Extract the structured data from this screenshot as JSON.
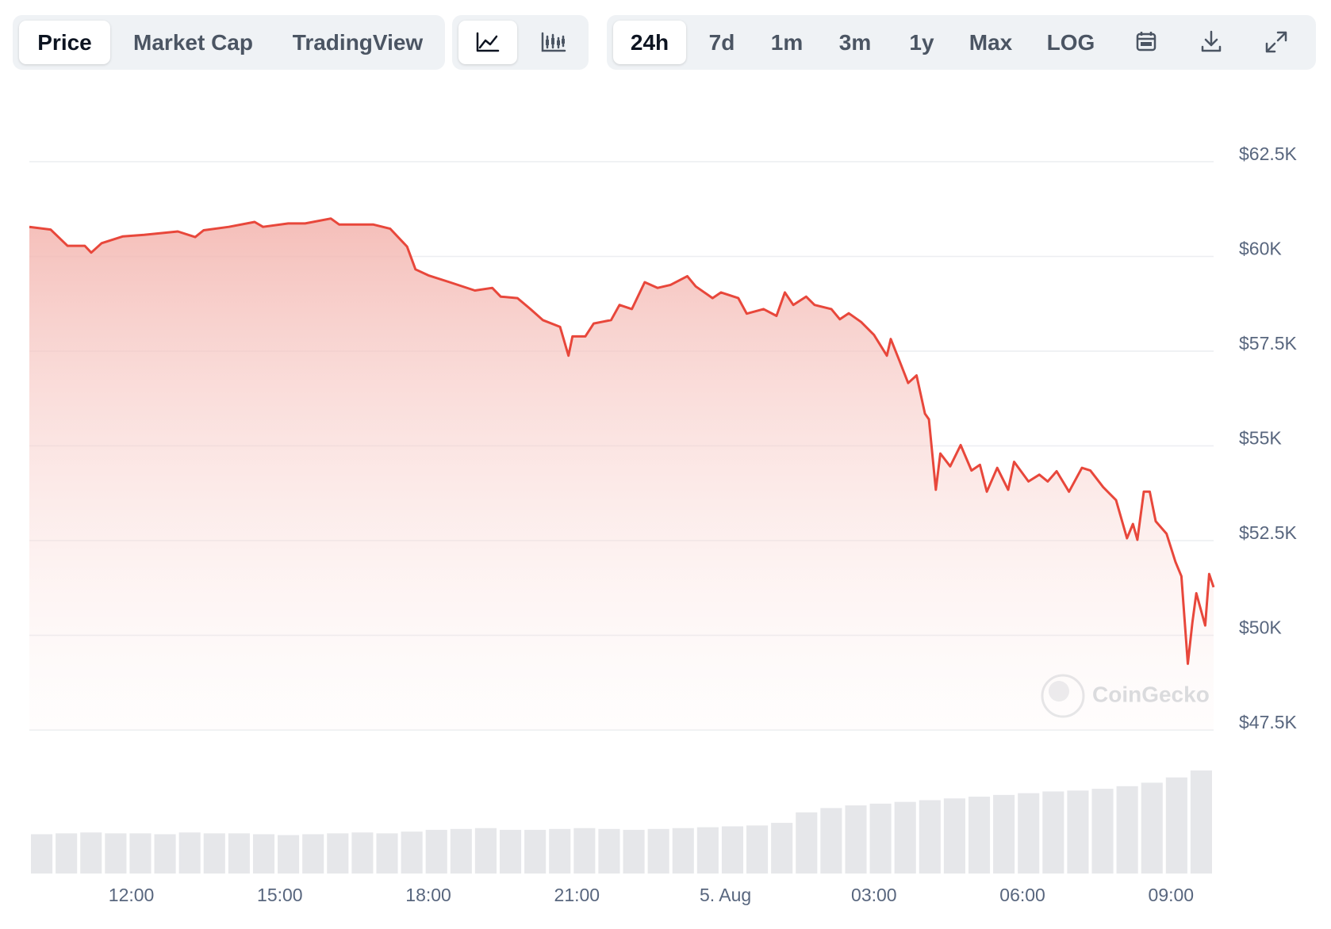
{
  "toolbar": {
    "tabs": [
      "Price",
      "Market Cap",
      "TradingView"
    ],
    "ranges": [
      "24h",
      "7d",
      "1m",
      "3m",
      "1y",
      "Max",
      "LOG"
    ]
  },
  "watermark": "CoinGecko",
  "chart_data": {
    "type": "line",
    "x": [
      9.94,
      10.37,
      10.71,
      11.06,
      11.19,
      11.4,
      11.83,
      12.26,
      12.94,
      13.29,
      13.46,
      13.97,
      14.49,
      14.66,
      15.17,
      15.51,
      16.03,
      16.2,
      16.89,
      17.23,
      17.57,
      17.74,
      18.0,
      18.43,
      18.94,
      19.29,
      19.46,
      19.8,
      20.06,
      20.31,
      20.66,
      20.83,
      20.91,
      21.17,
      21.34,
      21.69,
      21.86,
      22.11,
      22.37,
      22.63,
      22.89,
      23.23,
      23.4,
      23.74,
      23.91,
      24.26,
      24.43,
      24.77,
      25.03,
      25.2,
      25.37,
      25.63,
      25.8,
      26.14,
      26.31,
      26.49,
      26.74,
      27.0,
      27.26,
      27.34,
      27.51,
      27.69,
      27.86,
      28.03,
      28.11,
      28.25,
      28.34,
      28.54,
      28.75,
      28.97,
      29.14,
      29.28,
      29.49,
      29.71,
      29.83,
      30.12,
      30.34,
      30.51,
      30.69,
      30.94,
      31.2,
      31.37,
      31.63,
      31.89,
      32.11,
      32.23,
      32.32,
      32.45,
      32.57,
      32.69,
      32.91,
      33.09,
      33.21,
      33.34,
      33.43,
      33.51,
      33.69,
      33.77,
      33.86
    ],
    "values": [
      60780,
      60710,
      60280,
      60280,
      60100,
      60350,
      60530,
      60570,
      60660,
      60510,
      60690,
      60780,
      60910,
      60780,
      60870,
      60870,
      61000,
      60840,
      60840,
      60730,
      60260,
      59660,
      59500,
      59320,
      59100,
      59170,
      58940,
      58900,
      58610,
      58320,
      58140,
      57380,
      57890,
      57890,
      58230,
      58320,
      58720,
      58610,
      59320,
      59170,
      59250,
      59480,
      59210,
      58900,
      59050,
      58900,
      58490,
      58610,
      58430,
      59050,
      58720,
      58940,
      58720,
      58610,
      58340,
      58500,
      58270,
      57930,
      57380,
      57820,
      57260,
      56660,
      56860,
      55850,
      55700,
      53840,
      54800,
      54460,
      55020,
      54350,
      54500,
      53790,
      54420,
      53840,
      54580,
      54060,
      54240,
      54060,
      54330,
      53790,
      54420,
      54350,
      53910,
      53570,
      52560,
      52940,
      52520,
      53790,
      53790,
      53010,
      52680,
      51940,
      51560,
      49250,
      50330,
      51110,
      50260,
      51620,
      51270
    ],
    "color": "#e8473b",
    "volume_values": [
      45,
      46,
      47,
      46,
      46,
      45,
      47,
      46,
      46,
      45,
      44,
      45,
      46,
      47,
      46,
      48,
      50,
      51,
      52,
      50,
      50,
      51,
      52,
      51,
      50,
      51,
      52,
      53,
      54,
      55,
      58,
      70,
      75,
      78,
      80,
      82,
      84,
      86,
      88,
      90,
      92,
      94,
      95,
      97,
      100,
      104,
      110,
      118
    ],
    "volume_color": "#e6e7ea",
    "xlim": [
      9.94,
      33.86
    ],
    "xticks": [
      {
        "value": 12,
        "label": "12:00"
      },
      {
        "value": 15,
        "label": "15:00"
      },
      {
        "value": 18,
        "label": "18:00"
      },
      {
        "value": 21,
        "label": "21:00"
      },
      {
        "value": 24,
        "label": "5. Aug"
      },
      {
        "value": 27,
        "label": "03:00"
      },
      {
        "value": 30,
        "label": "06:00"
      },
      {
        "value": 33,
        "label": "09:00"
      }
    ],
    "ylim": [
      47500,
      62500
    ],
    "yticks": [
      {
        "value": 62500,
        "label": "$62.5K"
      },
      {
        "value": 60000,
        "label": "$60K"
      },
      {
        "value": 57500,
        "label": "$57.5K"
      },
      {
        "value": 55000,
        "label": "$55K"
      },
      {
        "value": 52500,
        "label": "$52.5K"
      },
      {
        "value": 50000,
        "label": "$50K"
      },
      {
        "value": 47500,
        "label": "$47.5K"
      }
    ],
    "grid": true
  }
}
